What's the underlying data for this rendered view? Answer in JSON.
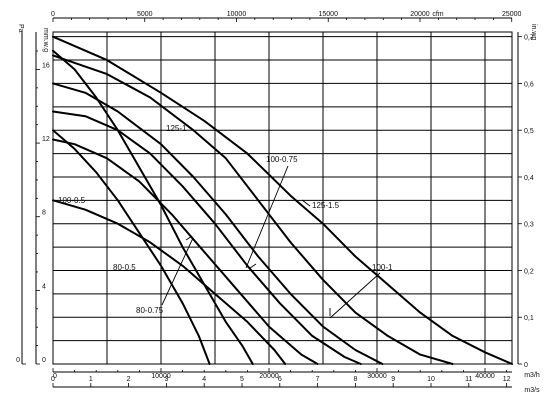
{
  "chart_data": {
    "type": "line",
    "title": "",
    "x_primary": {
      "unit": "m3/h",
      "ticks": [
        0,
        10000,
        20000,
        30000,
        40000
      ],
      "range": [
        0,
        42500
      ]
    },
    "x_secondary_top": {
      "unit": "cfm",
      "ticks": [
        0,
        5000,
        10000,
        15000,
        20000,
        25000
      ]
    },
    "x_secondary_bottom": {
      "unit": "m3/s",
      "ticks": [
        0,
        1,
        2,
        3,
        4,
        5,
        6,
        7,
        8,
        9,
        10,
        11,
        12
      ]
    },
    "y_left_pa": {
      "unit": "Pa",
      "ticks": [
        0,
        40,
        80,
        120,
        160
      ]
    },
    "y_left_mmwg": {
      "unit": "mm.w.g",
      "ticks": [
        0,
        4,
        8,
        12,
        16
      ]
    },
    "y_right_inwg": {
      "unit": "in.wg",
      "ticks": [
        0,
        0.1,
        0.2,
        0.3,
        0.4,
        0.5,
        0.6,
        0.7
      ],
      "range": [
        0,
        0.71
      ]
    },
    "series": [
      {
        "name": "125-1.5",
        "points": [
          [
            0,
            0.7
          ],
          [
            5000,
            0.65
          ],
          [
            10000,
            0.58
          ],
          [
            14000,
            0.52
          ],
          [
            18000,
            0.45
          ],
          [
            22000,
            0.36
          ],
          [
            25000,
            0.3
          ],
          [
            28000,
            0.23
          ],
          [
            31000,
            0.17
          ],
          [
            34000,
            0.11
          ],
          [
            37000,
            0.06
          ],
          [
            40000,
            0.025
          ],
          [
            42500,
            0
          ]
        ]
      },
      {
        "name": "125-1",
        "points": [
          [
            0,
            0.66
          ],
          [
            5000,
            0.62
          ],
          [
            9000,
            0.57
          ],
          [
            13000,
            0.5
          ],
          [
            16000,
            0.44
          ],
          [
            19000,
            0.35
          ],
          [
            22000,
            0.26
          ],
          [
            25000,
            0.18
          ],
          [
            28000,
            0.11
          ],
          [
            31000,
            0.06
          ],
          [
            34000,
            0.02
          ],
          [
            37000,
            0
          ]
        ]
      },
      {
        "name": "100-0.75",
        "points": [
          [
            0,
            0.6
          ],
          [
            3000,
            0.58
          ],
          [
            6000,
            0.54
          ],
          [
            10000,
            0.47
          ],
          [
            13000,
            0.4
          ],
          [
            16000,
            0.32
          ],
          [
            19000,
            0.23
          ],
          [
            22000,
            0.15
          ],
          [
            25000,
            0.08
          ],
          [
            28000,
            0.03
          ],
          [
            30500,
            0
          ]
        ]
      },
      {
        "name": "100-1",
        "points": [
          [
            0,
            0.54
          ],
          [
            3000,
            0.53
          ],
          [
            6000,
            0.5
          ],
          [
            9000,
            0.45
          ],
          [
            12000,
            0.38
          ],
          [
            15000,
            0.3
          ],
          [
            18000,
            0.21
          ],
          [
            21000,
            0.13
          ],
          [
            24000,
            0.06
          ],
          [
            27000,
            0.015
          ],
          [
            28500,
            0
          ]
        ]
      },
      {
        "name": "100-0.5",
        "points": [
          [
            0,
            0.48
          ],
          [
            2000,
            0.47
          ],
          [
            5000,
            0.44
          ],
          [
            8000,
            0.39
          ],
          [
            11000,
            0.32
          ],
          [
            14000,
            0.24
          ],
          [
            17000,
            0.16
          ],
          [
            20000,
            0.08
          ],
          [
            23000,
            0.02
          ],
          [
            24500,
            0
          ]
        ]
      },
      {
        "name": "80-0.75",
        "points": [
          [
            0,
            0.67
          ],
          [
            2000,
            0.63
          ],
          [
            4000,
            0.57
          ],
          [
            6000,
            0.5
          ],
          [
            8000,
            0.42
          ],
          [
            10000,
            0.34
          ],
          [
            12000,
            0.25
          ],
          [
            14000,
            0.17
          ],
          [
            16000,
            0.09
          ],
          [
            17500,
            0.04
          ],
          [
            18500,
            0
          ]
        ]
      },
      {
        "name": "80-0.5",
        "points": [
          [
            0,
            0.5
          ],
          [
            2000,
            0.46
          ],
          [
            4000,
            0.41
          ],
          [
            6000,
            0.35
          ],
          [
            8000,
            0.28
          ],
          [
            10000,
            0.21
          ],
          [
            12000,
            0.13
          ],
          [
            13500,
            0.06
          ],
          [
            14500,
            0
          ]
        ]
      },
      {
        "name": "",
        "points": [
          [
            0,
            0.35
          ],
          [
            3000,
            0.33
          ],
          [
            6000,
            0.3
          ],
          [
            9000,
            0.26
          ],
          [
            12000,
            0.21
          ],
          [
            15000,
            0.15
          ],
          [
            18000,
            0.09
          ],
          [
            20500,
            0.03
          ],
          [
            21500,
            0
          ]
        ]
      }
    ]
  }
}
